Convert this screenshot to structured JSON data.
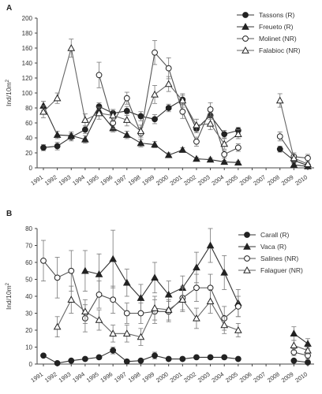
{
  "chart_data": [
    {
      "panel_label": "A",
      "type": "line",
      "ylabel": "Ind/10m",
      "ylabel_sup": "2",
      "ylim": [
        0,
        200
      ],
      "yticks": [
        0,
        20,
        40,
        60,
        80,
        100,
        120,
        140,
        160,
        180,
        200
      ],
      "x": [
        "1991",
        "1992",
        "1993",
        "1994",
        "1995",
        "1996",
        "1997",
        "1998",
        "1999",
        "2000",
        "2001",
        "2002",
        "2003",
        "2004",
        "2005",
        "2006",
        "2007",
        "2008",
        "2009",
        "2010"
      ],
      "legend_position": "top-right",
      "series": [
        {
          "name": "Tassons (R)",
          "marker": "circle-filled",
          "values": [
            27,
            29,
            41,
            51,
            82,
            73,
            76,
            69,
            65,
            80,
            91,
            52,
            70,
            45,
            50,
            null,
            null,
            25,
            10,
            3
          ],
          "errors": [
            4,
            5,
            5,
            5,
            5,
            5,
            6,
            6,
            6,
            5,
            6,
            5,
            5,
            5,
            4,
            null,
            null,
            4,
            3,
            2
          ]
        },
        {
          "name": "Freueto (R)",
          "marker": "triangle-filled",
          "values": [
            83,
            44,
            43,
            38,
            76,
            53,
            44,
            33,
            31,
            17,
            24,
            12,
            11,
            8,
            7,
            null,
            null,
            null,
            4,
            2
          ],
          "errors": [
            6,
            5,
            5,
            5,
            5,
            5,
            5,
            5,
            4,
            3,
            3,
            2,
            2,
            2,
            2,
            null,
            null,
            null,
            2,
            1
          ]
        },
        {
          "name": "Molinet (NR)",
          "marker": "circle-open",
          "values": [
            null,
            null,
            null,
            null,
            124,
            60,
            93,
            46,
            154,
            133,
            75,
            35,
            78,
            18,
            27,
            null,
            null,
            42,
            15,
            13
          ],
          "errors": [
            null,
            null,
            null,
            null,
            17,
            8,
            8,
            8,
            16,
            14,
            9,
            6,
            9,
            5,
            5,
            null,
            null,
            6,
            5,
            5
          ]
        },
        {
          "name": "Falabioc (NR)",
          "marker": "triangle-open",
          "values": [
            75,
            93,
            160,
            64,
            73,
            70,
            64,
            49,
            98,
            112,
            90,
            57,
            59,
            32,
            45,
            null,
            null,
            90,
            13,
            5
          ],
          "errors": [
            8,
            7,
            12,
            8,
            8,
            8,
            8,
            8,
            12,
            10,
            9,
            8,
            8,
            7,
            6,
            null,
            null,
            9,
            5,
            3
          ]
        }
      ]
    },
    {
      "panel_label": "B",
      "type": "line",
      "ylabel": "Ind/10m",
      "ylabel_sup": "2",
      "ylim": [
        0,
        80
      ],
      "yticks": [
        0,
        10,
        20,
        30,
        40,
        50,
        60,
        70,
        80
      ],
      "x": [
        "1991",
        "1992",
        "1993",
        "1994",
        "1995",
        "1996",
        "1997",
        "1998",
        "1999",
        "2000",
        "2001",
        "2002",
        "2003",
        "2004",
        "2005",
        "2006",
        "2007",
        "2008",
        "2009",
        "2010"
      ],
      "legend_position": "top-right",
      "series": [
        {
          "name": "Carall (R)",
          "marker": "circle-filled",
          "values": [
            5,
            0.5,
            2,
            3,
            4,
            8,
            1.5,
            2,
            5,
            3,
            3,
            4,
            4,
            4,
            3,
            null,
            null,
            null,
            2,
            1
          ],
          "errors": [
            1,
            1,
            1,
            1,
            1,
            2,
            1,
            1,
            2,
            1,
            1,
            1,
            1,
            1,
            1,
            null,
            null,
            null,
            1,
            1
          ]
        },
        {
          "name": "Vaca (R)",
          "marker": "triangle-filled",
          "values": [
            null,
            null,
            null,
            55,
            53,
            62,
            48,
            39,
            51,
            41,
            45,
            57,
            70,
            54,
            36,
            null,
            null,
            null,
            18,
            12
          ],
          "errors": [
            null,
            null,
            null,
            12,
            12,
            17,
            8,
            8,
            9,
            8,
            7,
            9,
            10,
            10,
            8,
            null,
            null,
            null,
            4,
            3
          ]
        },
        {
          "name": "Salines (NR)",
          "marker": "circle-open",
          "values": [
            61,
            51,
            55,
            27,
            41,
            38,
            30,
            30,
            31,
            31,
            39,
            45,
            45,
            27,
            34,
            null,
            null,
            null,
            7,
            5
          ],
          "errors": [
            12,
            12,
            12,
            8,
            8,
            8,
            6,
            6,
            7,
            6,
            7,
            8,
            8,
            7,
            6,
            null,
            null,
            null,
            2,
            2
          ]
        },
        {
          "name": "Falaguer (NR)",
          "marker": "triangle-open",
          "values": [
            null,
            22,
            38,
            31,
            26,
            18,
            18,
            16,
            33,
            32,
            38,
            27,
            37,
            23,
            20,
            null,
            null,
            null,
            11,
            8
          ],
          "errors": [
            null,
            6,
            8,
            7,
            6,
            5,
            5,
            5,
            7,
            6,
            7,
            6,
            7,
            5,
            4,
            null,
            null,
            null,
            3,
            2
          ]
        }
      ]
    }
  ]
}
